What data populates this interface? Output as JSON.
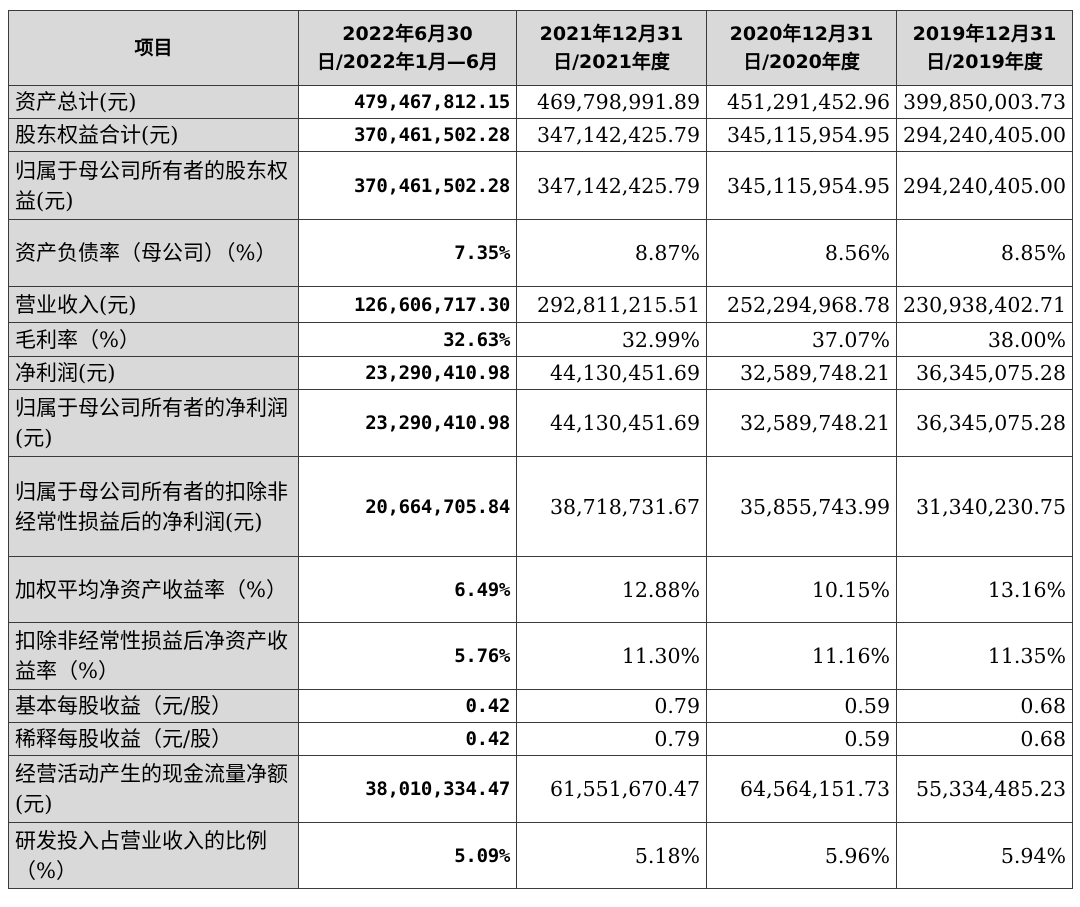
{
  "header": {
    "item": "项目",
    "col1": "2022年6月30日/2022年1月—6月",
    "col2": "2021年12月31日/2021年度",
    "col3": "2020年12月31日/2020年度",
    "col4": "2019年12月31日/2019年度"
  },
  "rows": [
    {
      "label": "资产总计(元)",
      "c1": "479,467,812.15",
      "c2": "469,798,991.89",
      "c3": "451,291,452.96",
      "c4": "399,850,003.73"
    },
    {
      "label": "股东权益合计(元)",
      "c1": "370,461,502.28",
      "c2": "347,142,425.79",
      "c3": "345,115,954.95",
      "c4": "294,240,405.00"
    },
    {
      "label": "归属于母公司所有者的股东权益(元)",
      "c1": "370,461,502.28",
      "c2": "347,142,425.79",
      "c3": "345,115,954.95",
      "c4": "294,240,405.00"
    },
    {
      "label": "资产负债率（母公司）（%）",
      "c1": "7.35%",
      "c2": "8.87%",
      "c3": "8.56%",
      "c4": "8.85%"
    },
    {
      "label": "营业收入(元)",
      "c1": "126,606,717.30",
      "c2": "292,811,215.51",
      "c3": "252,294,968.78",
      "c4": "230,938,402.71"
    },
    {
      "label": "毛利率（%）",
      "c1": "32.63%",
      "c2": "32.99%",
      "c3": "37.07%",
      "c4": "38.00%"
    },
    {
      "label": "净利润(元)",
      "c1": "23,290,410.98",
      "c2": "44,130,451.69",
      "c3": "32,589,748.21",
      "c4": "36,345,075.28"
    },
    {
      "label": "归属于母公司所有者的净利润(元)",
      "c1": "23,290,410.98",
      "c2": "44,130,451.69",
      "c3": "32,589,748.21",
      "c4": "36,345,075.28"
    },
    {
      "label": "归属于母公司所有者的扣除非经常性损益后的净利润(元)",
      "c1": "20,664,705.84",
      "c2": "38,718,731.67",
      "c3": "35,855,743.99",
      "c4": "31,340,230.75"
    },
    {
      "label": "加权平均净资产收益率（%）",
      "c1": "6.49%",
      "c2": "12.88%",
      "c3": "10.15%",
      "c4": "13.16%"
    },
    {
      "label": "扣除非经常性损益后净资产收益率（%）",
      "c1": "5.76%",
      "c2": "11.30%",
      "c3": "11.16%",
      "c4": "11.35%"
    },
    {
      "label": "基本每股收益（元/股）",
      "c1": "0.42",
      "c2": "0.79",
      "c3": "0.59",
      "c4": "0.68"
    },
    {
      "label": "稀释每股收益（元/股）",
      "c1": "0.42",
      "c2": "0.79",
      "c3": "0.59",
      "c4": "0.68"
    },
    {
      "label": "经营活动产生的现金流量净额(元)",
      "c1": "38,010,334.47",
      "c2": "61,551,670.47",
      "c3": "64,564,151.73",
      "c4": "55,334,485.23"
    },
    {
      "label": "研发投入占营业收入的比例（%）",
      "c1": "5.09%",
      "c2": "5.18%",
      "c3": "5.96%",
      "c4": "5.94%"
    }
  ]
}
